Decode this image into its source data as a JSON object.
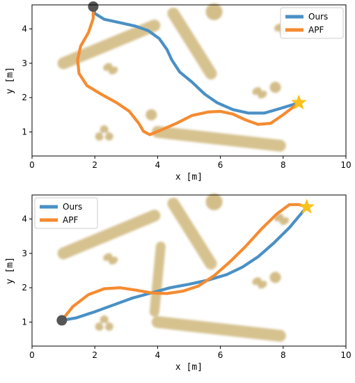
{
  "chart_data": [
    {
      "type": "line",
      "xlabel": "x [m]",
      "ylabel": "y [m]",
      "xlim": [
        0,
        10
      ],
      "ylim": [
        0.3,
        4.7
      ],
      "xticks": [
        0,
        2,
        4,
        6,
        8,
        10
      ],
      "yticks": [
        1,
        2,
        3,
        4
      ],
      "legend": {
        "placement": "top-right"
      },
      "start": {
        "x": 1.95,
        "y": 4.65,
        "color": "#555555"
      },
      "goal": {
        "x": 8.5,
        "y": 1.85,
        "color": "#f7c21b"
      },
      "series": [
        {
          "name": "Ours",
          "color": "#4a90c4",
          "points": [
            [
              1.95,
              4.65
            ],
            [
              2.0,
              4.45
            ],
            [
              2.3,
              4.28
            ],
            [
              2.8,
              4.18
            ],
            [
              3.3,
              4.08
            ],
            [
              3.7,
              3.95
            ],
            [
              4.05,
              3.72
            ],
            [
              4.3,
              3.4
            ],
            [
              4.45,
              3.1
            ],
            [
              4.7,
              2.75
            ],
            [
              5.1,
              2.45
            ],
            [
              5.5,
              2.1
            ],
            [
              5.9,
              1.85
            ],
            [
              6.4,
              1.65
            ],
            [
              6.9,
              1.55
            ],
            [
              7.4,
              1.55
            ],
            [
              7.9,
              1.68
            ],
            [
              8.5,
              1.85
            ]
          ]
        },
        {
          "name": "APF",
          "color": "#f58b31",
          "points": [
            [
              1.95,
              4.65
            ],
            [
              1.95,
              4.3
            ],
            [
              1.8,
              3.9
            ],
            [
              1.55,
              3.5
            ],
            [
              1.45,
              3.1
            ],
            [
              1.5,
              2.7
            ],
            [
              1.75,
              2.35
            ],
            [
              2.2,
              2.1
            ],
            [
              2.7,
              1.85
            ],
            [
              3.1,
              1.6
            ],
            [
              3.4,
              1.25
            ],
            [
              3.55,
              1.02
            ],
            [
              3.75,
              0.92
            ],
            [
              4.1,
              1.05
            ],
            [
              4.6,
              1.25
            ],
            [
              5.1,
              1.48
            ],
            [
              5.6,
              1.58
            ],
            [
              6.0,
              1.6
            ],
            [
              6.4,
              1.52
            ],
            [
              6.8,
              1.35
            ],
            [
              7.2,
              1.22
            ],
            [
              7.6,
              1.25
            ],
            [
              8.0,
              1.5
            ],
            [
              8.5,
              1.85
            ]
          ]
        }
      ]
    },
    {
      "type": "line",
      "xlabel": "x [m]",
      "ylabel": "y [m]",
      "xlim": [
        0,
        10
      ],
      "ylim": [
        0.3,
        4.7
      ],
      "xticks": [
        0,
        2,
        4,
        6,
        8,
        10
      ],
      "yticks": [
        1,
        2,
        3,
        4
      ],
      "legend": {
        "placement": "top-left"
      },
      "start": {
        "x": 0.95,
        "y": 1.05,
        "color": "#555555"
      },
      "goal": {
        "x": 8.75,
        "y": 4.35,
        "color": "#f7c21b"
      },
      "series": [
        {
          "name": "Ours",
          "color": "#4a90c4",
          "points": [
            [
              0.95,
              1.05
            ],
            [
              1.4,
              1.12
            ],
            [
              2.0,
              1.3
            ],
            [
              2.6,
              1.5
            ],
            [
              3.2,
              1.7
            ],
            [
              3.8,
              1.85
            ],
            [
              4.4,
              2.0
            ],
            [
              5.0,
              2.1
            ],
            [
              5.6,
              2.22
            ],
            [
              6.2,
              2.38
            ],
            [
              6.7,
              2.6
            ],
            [
              7.2,
              2.9
            ],
            [
              7.7,
              3.3
            ],
            [
              8.2,
              3.75
            ],
            [
              8.75,
              4.35
            ]
          ]
        },
        {
          "name": "APF",
          "color": "#f58b31",
          "points": [
            [
              0.95,
              1.05
            ],
            [
              1.3,
              1.45
            ],
            [
              1.8,
              1.8
            ],
            [
              2.3,
              1.97
            ],
            [
              2.8,
              2.0
            ],
            [
              3.3,
              1.93
            ],
            [
              3.8,
              1.85
            ],
            [
              4.3,
              1.83
            ],
            [
              4.8,
              1.9
            ],
            [
              5.3,
              2.05
            ],
            [
              5.8,
              2.35
            ],
            [
              6.3,
              2.75
            ],
            [
              6.8,
              3.2
            ],
            [
              7.3,
              3.7
            ],
            [
              7.8,
              4.15
            ],
            [
              8.2,
              4.42
            ],
            [
              8.5,
              4.42
            ],
            [
              8.75,
              4.35
            ]
          ]
        }
      ]
    }
  ]
}
